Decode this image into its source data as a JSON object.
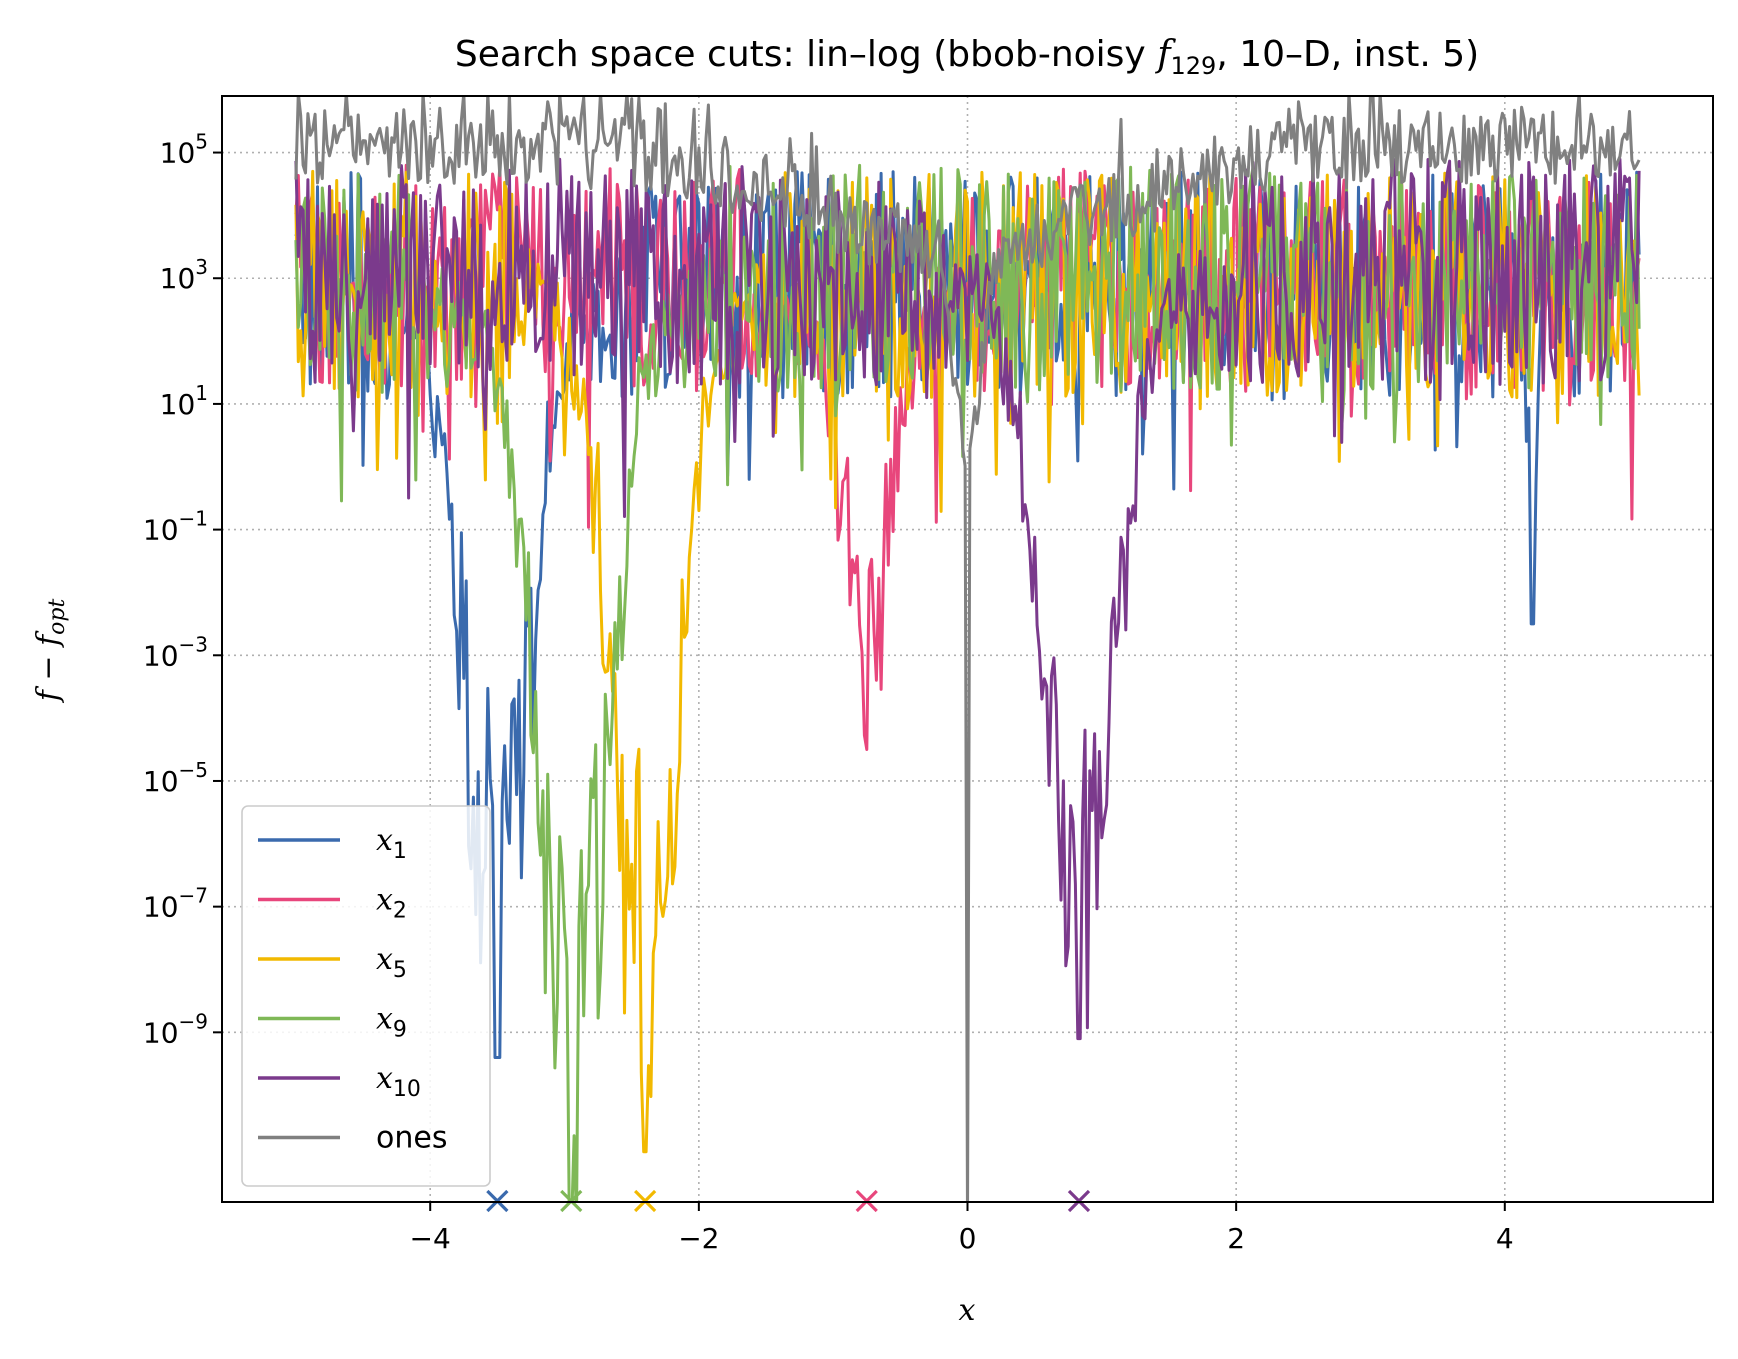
{
  "chart_data": {
    "type": "line",
    "title": {
      "prefix": "Search space cuts: lin–log (bbob-noisy ",
      "func_symbol": "f",
      "func_index": "129",
      "suffix": ", 10–D, inst. 5)"
    },
    "xlabel": "x",
    "ylabel": {
      "main": "f − f",
      "sub": "opt"
    },
    "xlim": [
      -5.55,
      5.55
    ],
    "ylim_log10": [
      -11.7,
      5.9
    ],
    "y_scale": "log",
    "x_ticks": [
      {
        "value": -4,
        "label": "−4"
      },
      {
        "value": -2,
        "label": "−2"
      },
      {
        "value": 0,
        "label": "0"
      },
      {
        "value": 2,
        "label": "2"
      },
      {
        "value": 4,
        "label": "4"
      }
    ],
    "y_ticks": [
      {
        "exp": 5,
        "base": "10",
        "power": "5"
      },
      {
        "exp": 3,
        "base": "10",
        "power": "3"
      },
      {
        "exp": 1,
        "base": "10",
        "power": "1"
      },
      {
        "exp": -1,
        "base": "10",
        "power": "−1"
      },
      {
        "exp": -3,
        "base": "10",
        "power": "−3"
      },
      {
        "exp": -5,
        "base": "10",
        "power": "−5"
      },
      {
        "exp": -7,
        "base": "10",
        "power": "−7"
      },
      {
        "exp": -9,
        "base": "10",
        "power": "−9"
      }
    ],
    "grid": true,
    "legend_position": "lower-left",
    "series": [
      {
        "name": "x",
        "sub": "1",
        "color": "#3a6aad",
        "opt_x": -3.5,
        "baseline_log10": 2.9,
        "noise_amp": 1.8,
        "dips": [
          {
            "x": -3.5,
            "width": 0.45,
            "min_log10": -9.4
          },
          {
            "x": 4.2,
            "width": 0.06,
            "min_log10": -2.5
          }
        ]
      },
      {
        "name": "x",
        "sub": "2",
        "color": "#e8467c",
        "opt_x": -0.75,
        "baseline_log10": 3.0,
        "noise_amp": 1.8,
        "dips": [
          {
            "x": -0.75,
            "width": 0.35,
            "min_log10": -4.5
          }
        ]
      },
      {
        "name": "x",
        "sub": "5",
        "color": "#f2b900",
        "opt_x": -2.4,
        "baseline_log10": 2.9,
        "noise_amp": 1.8,
        "dips": [
          {
            "x": -2.4,
            "width": 0.45,
            "min_log10": -10.9
          }
        ]
      },
      {
        "name": "x",
        "sub": "9",
        "color": "#7fb857",
        "opt_x": -2.95,
        "baseline_log10": 3.0,
        "noise_amp": 1.8,
        "dips": [
          {
            "x": -2.95,
            "width": 0.5,
            "min_log10": -12.0
          }
        ]
      },
      {
        "name": "x",
        "sub": "10",
        "color": "#7b3a8c",
        "opt_x": 0.83,
        "baseline_log10": 3.1,
        "noise_amp": 1.8,
        "dips": [
          {
            "x": 0.83,
            "width": 0.5,
            "min_log10": -9.1
          }
        ]
      },
      {
        "name": "ones",
        "sub": "",
        "color": "#808080",
        "opt_x": null,
        "baseline_log10": 5.1,
        "noise_amp": 0.35,
        "dips": [
          {
            "x": 0.0,
            "width": 0.2,
            "min_log10": -12.0
          }
        ]
      }
    ]
  }
}
